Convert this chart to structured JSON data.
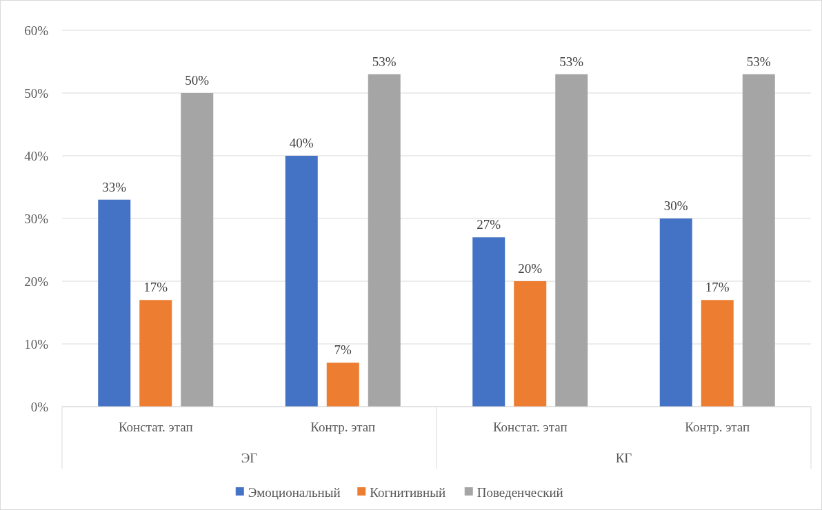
{
  "chart_data": {
    "type": "bar",
    "categories": [
      "Констат. этап",
      "Контр. этап",
      "Констат. этап",
      "Контр. этап"
    ],
    "series": [
      {
        "name": "Эмоциональный",
        "color": "#4472c4",
        "values": [
          33,
          40,
          27,
          30
        ],
        "value_labels": [
          "33%",
          "40%",
          "27%",
          "30%"
        ]
      },
      {
        "name": "Когнитивный",
        "color": "#ed7d31",
        "values": [
          17,
          7,
          20,
          17
        ],
        "value_labels": [
          "17%",
          "7%",
          "20%",
          "17%"
        ]
      },
      {
        "name": "Поведенческий",
        "color": "#a5a5a5",
        "values": [
          50,
          53,
          53,
          53
        ],
        "value_labels": [
          "50%",
          "53%",
          "53%",
          "53%"
        ]
      }
    ],
    "ylim": [
      0,
      60
    ],
    "yticks": [
      {
        "value": 0,
        "label": "0%"
      },
      {
        "value": 10,
        "label": "10%"
      },
      {
        "value": 20,
        "label": "20%"
      },
      {
        "value": 30,
        "label": "30%"
      },
      {
        "value": 40,
        "label": "40%"
      },
      {
        "value": 50,
        "label": "50%"
      },
      {
        "value": 60,
        "label": "60%"
      }
    ],
    "annotations": [
      "ЭГ",
      "КГ"
    ],
    "grid": "y",
    "legend": "bottom"
  }
}
